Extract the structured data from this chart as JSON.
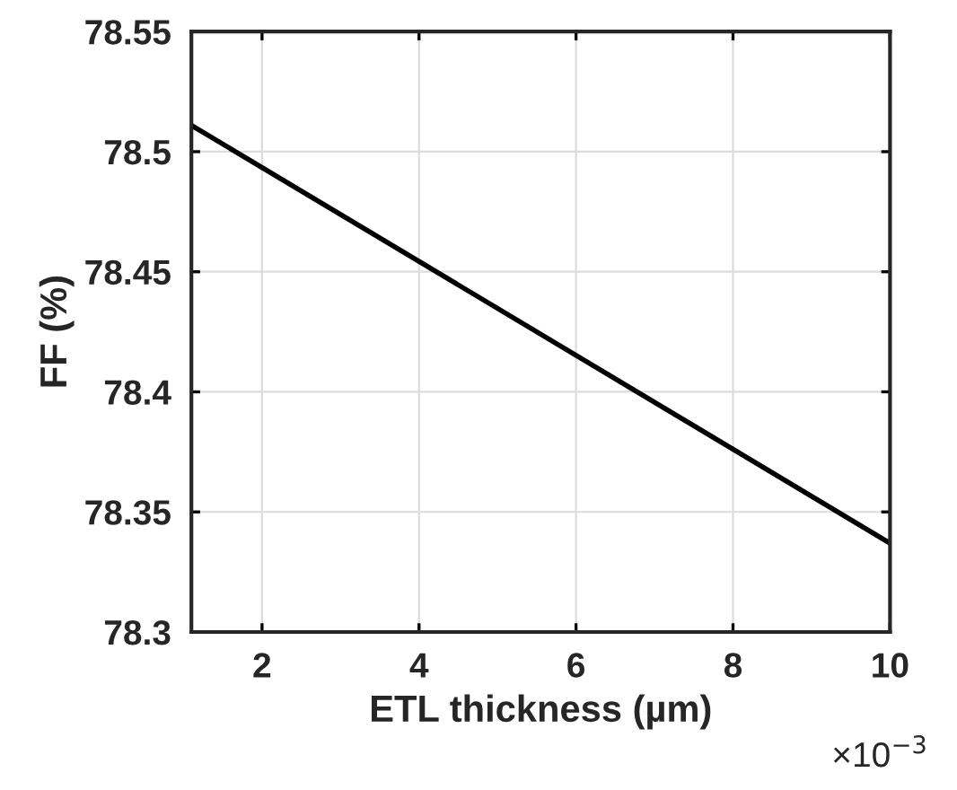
{
  "chart_data": {
    "type": "line",
    "xlabel": "ETL thickness (µm)",
    "ylabel": "FF (%)",
    "x": [
      1.1,
      10
    ],
    "series": [
      {
        "color": "#000000",
        "values": [
          78.511,
          78.337
        ]
      }
    ],
    "xlim": [
      1.1,
      10
    ],
    "xticks": [
      2,
      4,
      6,
      8,
      10
    ],
    "ylim": [
      78.3,
      78.55
    ],
    "yticks": [
      78.3,
      78.35,
      78.4,
      78.45,
      78.5,
      78.55
    ],
    "grid": true,
    "marker": "none",
    "line_style": "solid",
    "annotations": [
      "×10$^{−3}$"
    ]
  }
}
